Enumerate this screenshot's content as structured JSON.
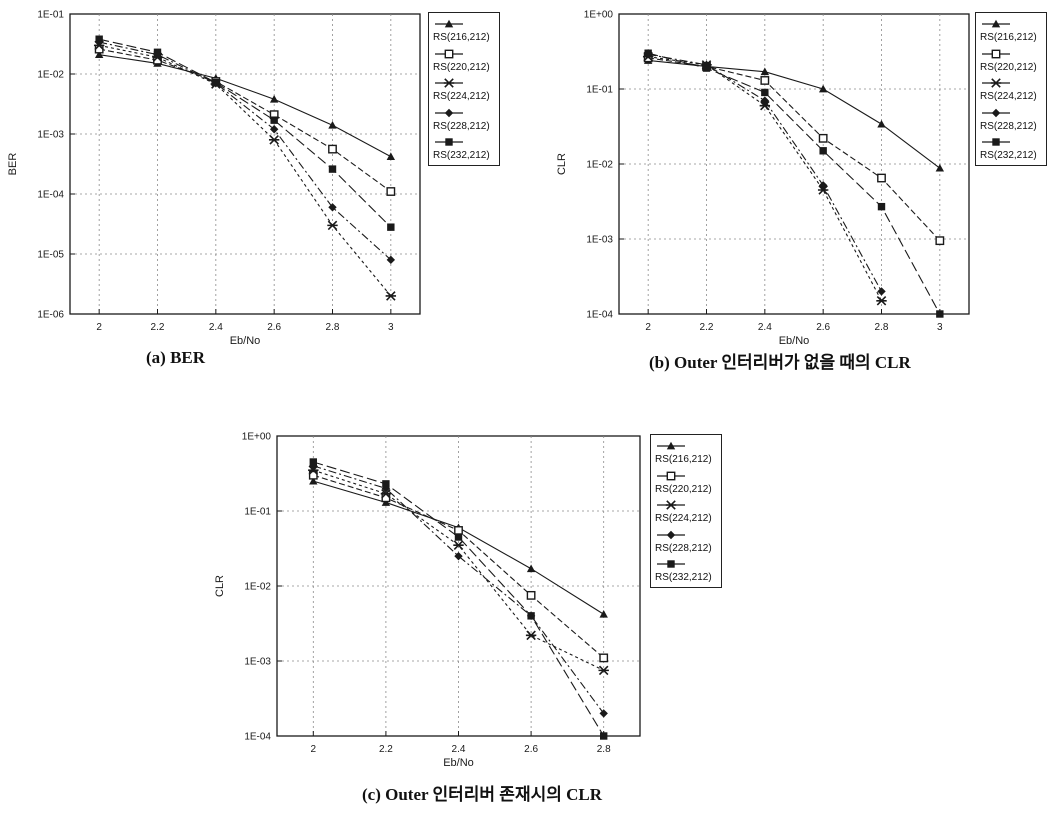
{
  "colors": {
    "line": "#1a1a1a",
    "grid": "#8a8a8a",
    "background": "#ffffff"
  },
  "figure": {
    "panels": [
      {
        "id": "a",
        "caption": "(a) BER"
      },
      {
        "id": "b",
        "caption": "(b) Outer 인터리버가 없을 때의 CLR"
      },
      {
        "id": "c",
        "caption": "(c) Outer 인터리버 존재시의 CLR"
      }
    ]
  },
  "chart_data": [
    {
      "type": "line",
      "xlabel": "Eb/No",
      "ylabel": "BER",
      "xscale": "linear",
      "yscale": "log",
      "xlim": [
        1.9,
        3.1
      ],
      "ylim": [
        1e-06,
        0.1
      ],
      "x_ticks": [
        2,
        2.2,
        2.4,
        2.6,
        2.8,
        3
      ],
      "x_tick_labels": [
        "2",
        "2.2",
        "2.4",
        "2.6",
        "2.8",
        "3"
      ],
      "y_ticks": [
        1e-06,
        1e-05,
        0.0001,
        0.001,
        0.01,
        0.1
      ],
      "y_tick_labels": [
        "1E-06",
        "1E-05",
        "1E-04",
        "1E-03",
        "1E-02",
        "1E-01"
      ],
      "grid": true,
      "legend_position": "right",
      "x": [
        2,
        2.2,
        2.4,
        2.6,
        2.8,
        3
      ],
      "series": [
        {
          "name": "RS(216,212)",
          "marker": "triangle",
          "values": [
            0.021,
            0.015,
            0.0085,
            0.0038,
            0.0014,
            0.00042
          ]
        },
        {
          "name": "RS(220,212)",
          "marker": "square-open",
          "values": [
            0.026,
            0.017,
            0.0075,
            0.0021,
            0.00056,
            0.00011
          ]
        },
        {
          "name": "RS(224,212)",
          "marker": "asterisk",
          "values": [
            0.03,
            0.019,
            0.0068,
            0.0008,
            3e-05,
            2e-06
          ]
        },
        {
          "name": "RS(228,212)",
          "marker": "diamond",
          "values": [
            0.034,
            0.021,
            0.007,
            0.0012,
            6e-05,
            8e-06
          ]
        },
        {
          "name": "RS(232,212)",
          "marker": "square",
          "values": [
            0.038,
            0.023,
            0.0072,
            0.0017,
            0.00026,
            2.8e-05
          ]
        }
      ]
    },
    {
      "type": "line",
      "xlabel": "Eb/No",
      "ylabel": "CLR",
      "xscale": "linear",
      "yscale": "log",
      "xlim": [
        1.9,
        3.1
      ],
      "ylim": [
        0.0001,
        1
      ],
      "x_ticks": [
        2,
        2.2,
        2.4,
        2.6,
        2.8,
        3
      ],
      "x_tick_labels": [
        "2",
        "2.2",
        "2.4",
        "2.6",
        "2.8",
        "3"
      ],
      "y_ticks": [
        0.0001,
        0.001,
        0.01,
        0.1,
        1
      ],
      "y_tick_labels": [
        "1E-04",
        "1E-03",
        "1E-02",
        "1E-01",
        "1E+00"
      ],
      "grid": true,
      "legend_position": "right",
      "x": [
        2,
        2.2,
        2.4,
        2.6,
        2.8,
        3
      ],
      "series": [
        {
          "name": "RS(216,212)",
          "marker": "triangle",
          "values": [
            0.24,
            0.2,
            0.17,
            0.1,
            0.034,
            0.0088
          ]
        },
        {
          "name": "RS(220,212)",
          "marker": "square-open",
          "values": [
            0.26,
            0.2,
            0.13,
            0.022,
            0.0065,
            0.00095
          ]
        },
        {
          "name": "RS(224,212)",
          "marker": "asterisk",
          "values": [
            0.27,
            0.21,
            0.06,
            0.0045,
            0.00015,
            null
          ]
        },
        {
          "name": "RS(228,212)",
          "marker": "diamond",
          "values": [
            0.29,
            0.21,
            0.07,
            0.0052,
            0.0002,
            null
          ]
        },
        {
          "name": "RS(232,212)",
          "marker": "square",
          "values": [
            0.3,
            0.19,
            0.09,
            0.015,
            0.0027,
            0.0001
          ]
        }
      ]
    },
    {
      "type": "line",
      "xlabel": "Eb/No",
      "ylabel": "CLR",
      "xscale": "linear",
      "yscale": "log",
      "xlim": [
        1.9,
        2.9
      ],
      "ylim": [
        0.0001,
        1
      ],
      "x_ticks": [
        2,
        2.2,
        2.4,
        2.6,
        2.8
      ],
      "x_tick_labels": [
        "2",
        "2.2",
        "2.4",
        "2.6",
        "2.8"
      ],
      "y_ticks": [
        0.0001,
        0.001,
        0.01,
        0.1,
        1
      ],
      "y_tick_labels": [
        "1E-04",
        "1E-03",
        "1E-02",
        "1E-01",
        "1E+00"
      ],
      "grid": true,
      "legend_position": "right",
      "x": [
        2,
        2.2,
        2.4,
        2.6,
        2.8
      ],
      "series": [
        {
          "name": "RS(216,212)",
          "marker": "triangle",
          "values": [
            0.25,
            0.13,
            0.06,
            0.017,
            0.0042
          ]
        },
        {
          "name": "RS(220,212)",
          "marker": "square-open",
          "values": [
            0.3,
            0.15,
            0.055,
            0.0075,
            0.0011
          ]
        },
        {
          "name": "RS(224,212)",
          "marker": "asterisk",
          "values": [
            0.35,
            0.17,
            0.035,
            0.0022,
            0.00075
          ]
        },
        {
          "name": "RS(228,212)",
          "marker": "diamond",
          "values": [
            0.4,
            0.2,
            0.025,
            0.004,
            0.0002
          ]
        },
        {
          "name": "RS(232,212)",
          "marker": "square",
          "values": [
            0.45,
            0.23,
            0.045,
            0.004,
            0.0001
          ]
        }
      ]
    }
  ]
}
